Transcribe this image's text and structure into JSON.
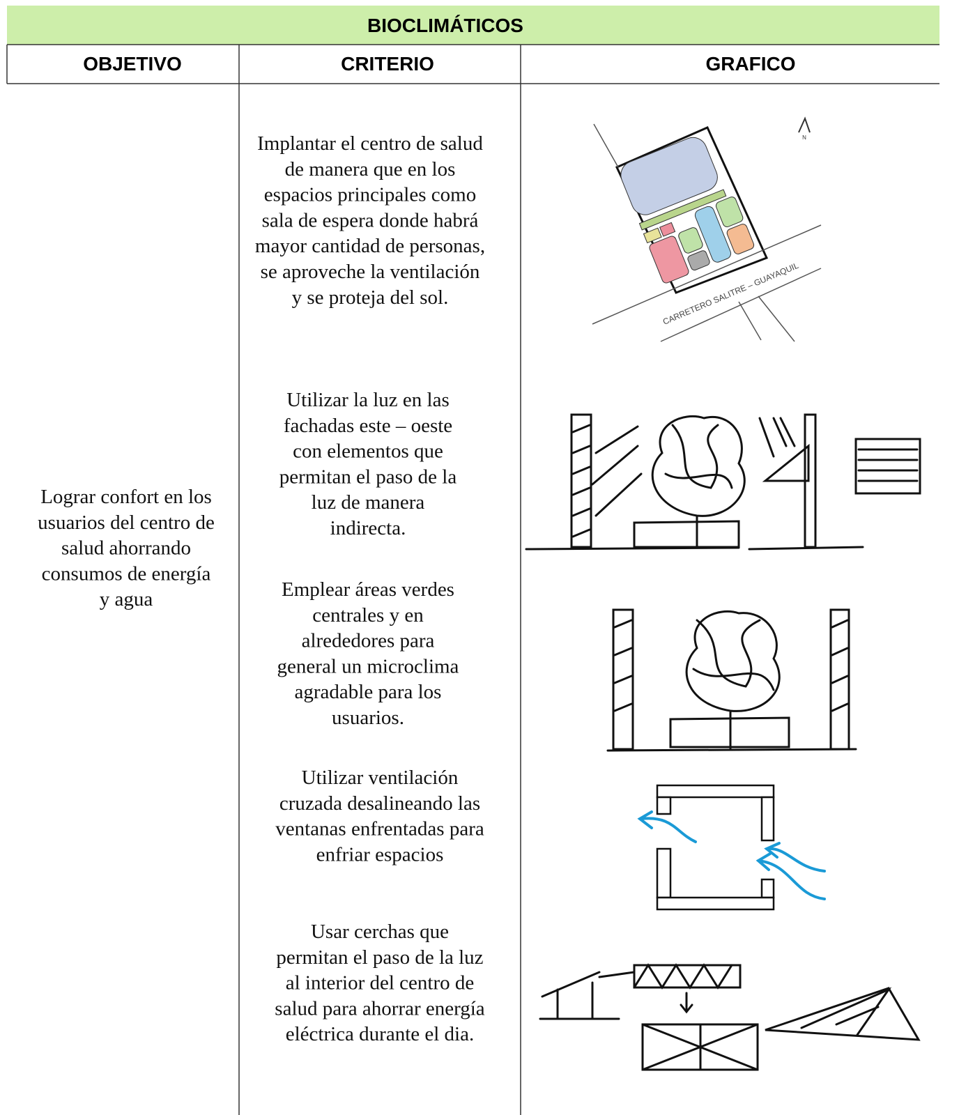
{
  "header": {
    "title": "BIOCLIMÁTICOS"
  },
  "columns": [
    "OBJETIVO",
    "CRITERIO",
    "GRAFICO"
  ],
  "objective": [
    "Lograr confort en los",
    "usuarios del centro de",
    "salud ahorrando",
    "consumos de energía",
    "y agua"
  ],
  "criteria": [
    [
      "Implantar el centro de salud",
      "de manera que en los",
      "espacios principales como",
      "sala de espera donde habrá",
      "mayor cantidad de personas,",
      "se aproveche la ventilación",
      "y se proteja del sol."
    ],
    [
      "Utilizar la luz en las",
      "fachadas este – oeste",
      "con elementos que",
      "permitan el paso de la",
      "luz de manera",
      "indirecta."
    ],
    [
      "Emplear áreas verdes",
      "centrales y en",
      "alrededores  para",
      "general un microclima",
      "agradable para los",
      "usuarios."
    ],
    [
      "Utilizar ventilación",
      "cruzada desalineando las",
      "ventanas enfrentadas para",
      "enfriar espacios"
    ],
    [
      "Usar cerchas que",
      "permitan el paso de la luz",
      "al interior del centro de",
      "salud para ahorrar energía",
      "eléctrica durante el dia."
    ]
  ],
  "site_plan": {
    "road_label": "CARRETERO   SALITRE  –  GUAYAQUIL",
    "north": "N"
  }
}
